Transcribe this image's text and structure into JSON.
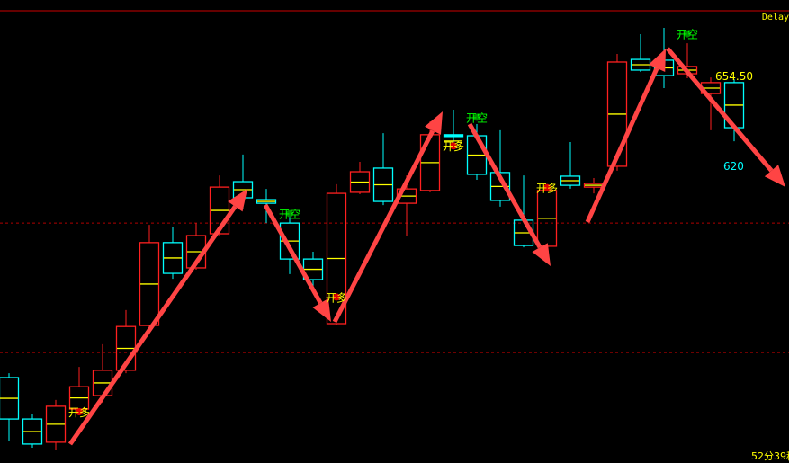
{
  "header": {
    "delay_label": "Delay"
  },
  "footer": {
    "countdown": "52分39秒"
  },
  "colors": {
    "background": "#000000",
    "up": "#ff2020",
    "down": "#00ffff",
    "midline": "#ffff00",
    "arrow": "#ff4444",
    "long_signal": "#ffff00",
    "short_signal": "#00ff00"
  },
  "chart_data": {
    "type": "candlestick",
    "title": "",
    "annotations": {
      "high_label": "654.50",
      "low_label": "620"
    },
    "reference_lines": [
      598.6,
      548.9
    ],
    "candles": [
      {
        "o": 539.3,
        "h": 541.0,
        "l": 515.1,
        "c": 523.4
      },
      {
        "o": 523.4,
        "h": 525.5,
        "l": 512.4,
        "c": 513.8
      },
      {
        "o": 514.5,
        "h": 530.7,
        "l": 511.7,
        "c": 528.3
      },
      {
        "o": 527.2,
        "h": 543.4,
        "l": 524.8,
        "c": 535.8
      },
      {
        "o": 532.4,
        "h": 552.1,
        "l": 529.6,
        "c": 542.1
      },
      {
        "o": 542.1,
        "h": 565.2,
        "l": 541.0,
        "c": 558.9
      },
      {
        "o": 559.3,
        "h": 597.9,
        "l": 558.3,
        "c": 591.1
      },
      {
        "o": 591.1,
        "h": 596.9,
        "l": 577.2,
        "c": 579.3
      },
      {
        "o": 581.4,
        "h": 598.6,
        "l": 580.7,
        "c": 593.8
      },
      {
        "o": 594.5,
        "h": 616.9,
        "l": 593.8,
        "c": 612.4
      },
      {
        "o": 614.5,
        "h": 624.9,
        "l": 604.2,
        "c": 608.3
      },
      {
        "o": 607.6,
        "h": 611.7,
        "l": 598.6,
        "c": 606.2
      },
      {
        "o": 598.6,
        "h": 603.1,
        "l": 579.0,
        "c": 584.8
      },
      {
        "o": 584.8,
        "h": 587.6,
        "l": 574.5,
        "c": 576.9
      },
      {
        "o": 560.0,
        "h": 613.5,
        "l": 559.3,
        "c": 610.0
      },
      {
        "o": 610.4,
        "h": 622.1,
        "l": 609.7,
        "c": 618.3
      },
      {
        "o": 619.7,
        "h": 633.1,
        "l": 605.5,
        "c": 606.9
      },
      {
        "o": 606.2,
        "h": 616.9,
        "l": 593.8,
        "c": 611.7
      },
      {
        "o": 611.1,
        "h": 637.6,
        "l": 610.4,
        "c": 632.5
      },
      {
        "o": 632.5,
        "h": 642.1,
        "l": 627.3,
        "c": 631.8
      },
      {
        "o": 632.1,
        "h": 636.6,
        "l": 615.2,
        "c": 617.3
      },
      {
        "o": 618.0,
        "h": 634.2,
        "l": 604.9,
        "c": 607.3
      },
      {
        "o": 599.7,
        "h": 616.9,
        "l": 589.3,
        "c": 590.0
      },
      {
        "o": 589.7,
        "h": 613.5,
        "l": 589.0,
        "c": 611.1
      },
      {
        "o": 616.6,
        "h": 629.7,
        "l": 611.8,
        "c": 613.1
      },
      {
        "o": 612.4,
        "h": 615.9,
        "l": 610.0,
        "c": 613.8
      },
      {
        "o": 620.4,
        "h": 663.5,
        "l": 618.7,
        "c": 660.4
      },
      {
        "o": 661.4,
        "h": 671.1,
        "l": 656.6,
        "c": 657.3
      },
      {
        "o": 661.1,
        "h": 673.5,
        "l": 650.4,
        "c": 655.2
      },
      {
        "o": 655.9,
        "h": 667.6,
        "l": 654.2,
        "c": 658.7
      },
      {
        "o": 648.3,
        "h": 654.5,
        "l": 634.2,
        "c": 652.5
      },
      {
        "o": 652.5,
        "h": 653.8,
        "l": 630.0,
        "c": 635.2
      }
    ],
    "signals": [
      {
        "candle": 3,
        "text": "开多",
        "type": "long",
        "price": 524.5
      },
      {
        "candle": 12,
        "text": "开空",
        "type": "short",
        "price": 600.5
      },
      {
        "candle": 14,
        "text": "开多",
        "type": "long",
        "price": 568.5
      },
      {
        "candle": 19,
        "text": "开多",
        "type": "long",
        "price": 626.5
      },
      {
        "candle": 20,
        "text": "开空",
        "type": "short",
        "price": 637.5
      },
      {
        "candle": 23,
        "text": "开多",
        "type": "long",
        "price": 610.5
      },
      {
        "candle": 29,
        "text": "开空",
        "type": "short",
        "price": 669.5
      }
    ]
  }
}
